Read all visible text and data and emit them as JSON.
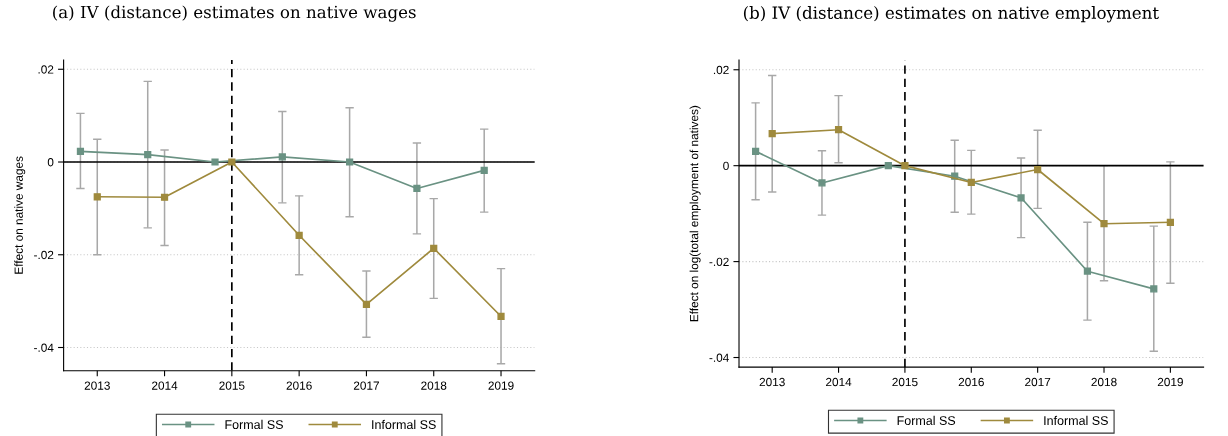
{
  "chart_data": [
    {
      "type": "line",
      "title": "(a) IV (distance) estimates on native wages",
      "ylabel": "Effect on native wages",
      "series": [
        {
          "name": "Formal SS",
          "color": "#6a9283",
          "x": [
            2012.75,
            2013.75,
            2014.75,
            2015.75,
            2016.75,
            2017.75,
            2018.75
          ],
          "values": [
            0.0023,
            0.0016,
            0,
            0.0011,
            0,
            -0.0057,
            -0.0018
          ],
          "errors": [
            [
              -0.0057,
              0.0105
            ],
            [
              -0.0142,
              0.0174
            ],
            null,
            [
              -0.0088,
              0.0109
            ],
            [
              -0.0118,
              0.0117
            ],
            [
              -0.0155,
              0.0041
            ],
            [
              -0.0108,
              0.0071
            ]
          ]
        },
        {
          "name": "Informal SS",
          "color": "#9f8a3d",
          "x": [
            2013,
            2014,
            2015,
            2016,
            2017,
            2018,
            2019
          ],
          "values": [
            -0.0075,
            -0.0076,
            0,
            -0.0158,
            -0.0307,
            -0.0186,
            -0.0333
          ],
          "errors": [
            [
              -0.02,
              0.0049
            ],
            [
              -0.018,
              0.0026
            ],
            null,
            [
              -0.0243,
              -0.0073
            ],
            [
              -0.0378,
              -0.0235
            ],
            [
              -0.0294,
              -0.0079
            ],
            [
              -0.0435,
              -0.023
            ]
          ]
        }
      ],
      "xlim": [
        2012.5,
        2019.5
      ],
      "xticks": [
        2013,
        2014,
        2015,
        2016,
        2017,
        2018,
        2019
      ],
      "ylim": [
        -0.045,
        0.022
      ],
      "yticks": [
        {
          "value": -0.04,
          "label": "-.04"
        },
        {
          "value": -0.02,
          "label": "-.02"
        },
        {
          "value": 0,
          "label": "0"
        },
        {
          "value": 0.02,
          "label": ".02"
        }
      ],
      "ref_lines": [
        {
          "axis": "y",
          "value": 0,
          "color": "#000000",
          "line_style": "solid"
        },
        {
          "axis": "x",
          "value": 2015,
          "color": "#000000",
          "line_style": "dashed"
        }
      ],
      "grid": "y",
      "legend": "bottom",
      "marker": "square",
      "line_style": "solid"
    },
    {
      "type": "line",
      "title": "(b) IV (distance) estimates on native employment",
      "ylabel": "Effect on log(total employment of natives)",
      "series": [
        {
          "name": "Formal SS",
          "color": "#6a9283",
          "x": [
            2012.75,
            2013.75,
            2014.75,
            2015.75,
            2016.75,
            2017.75,
            2018.75
          ],
          "values": [
            0.003,
            -0.0036,
            0,
            -0.0022,
            -0.0067,
            -0.022,
            -0.0257
          ],
          "errors": [
            [
              -0.0071,
              0.0131
            ],
            [
              -0.0103,
              0.0031
            ],
            null,
            [
              -0.0097,
              0.0053
            ],
            [
              -0.015,
              0.0016
            ],
            [
              -0.0322,
              -0.0118
            ],
            [
              -0.0387,
              -0.0126
            ]
          ]
        },
        {
          "name": "Informal SS",
          "color": "#9f8a3d",
          "x": [
            2013,
            2014,
            2015,
            2016,
            2017,
            2018,
            2019
          ],
          "values": [
            0.0067,
            0.0075,
            0,
            -0.0035,
            -0.0008,
            -0.0121,
            -0.0118
          ],
          "errors": [
            [
              -0.0055,
              0.0188
            ],
            [
              0.0006,
              0.0146
            ],
            null,
            [
              -0.0101,
              0.0032
            ],
            [
              -0.0089,
              0.0074
            ],
            [
              -0.024,
              0
            ],
            [
              -0.0245,
              0.0008
            ]
          ]
        }
      ],
      "xlim": [
        2012.5,
        2019.5
      ],
      "xticks": [
        2013,
        2014,
        2015,
        2016,
        2017,
        2018,
        2019
      ],
      "ylim": [
        -0.042,
        0.022
      ],
      "yticks": [
        {
          "value": -0.04,
          "label": "-.04"
        },
        {
          "value": -0.02,
          "label": "-.02"
        },
        {
          "value": 0,
          "label": "0"
        },
        {
          "value": 0.02,
          "label": ".02"
        }
      ],
      "ref_lines": [
        {
          "axis": "y",
          "value": 0,
          "color": "#000000",
          "line_style": "solid"
        },
        {
          "axis": "x",
          "value": 2015,
          "color": "#000000",
          "line_style": "dashed"
        }
      ],
      "grid": "y",
      "legend": "bottom",
      "marker": "square",
      "line_style": "solid"
    }
  ]
}
